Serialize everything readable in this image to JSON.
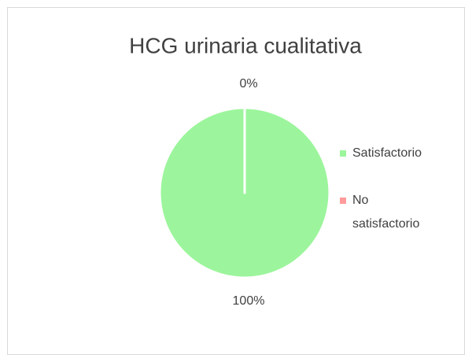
{
  "chart_data": {
    "type": "pie",
    "title": "HCG urinaria cualitativa",
    "categories": [
      "Satisfactorio",
      "No satisfactorio"
    ],
    "values": [
      100,
      0
    ],
    "value_labels": [
      "100%",
      "0%"
    ],
    "colors": [
      "#9cf59c",
      "#ff9b9b"
    ],
    "legend": "right"
  }
}
